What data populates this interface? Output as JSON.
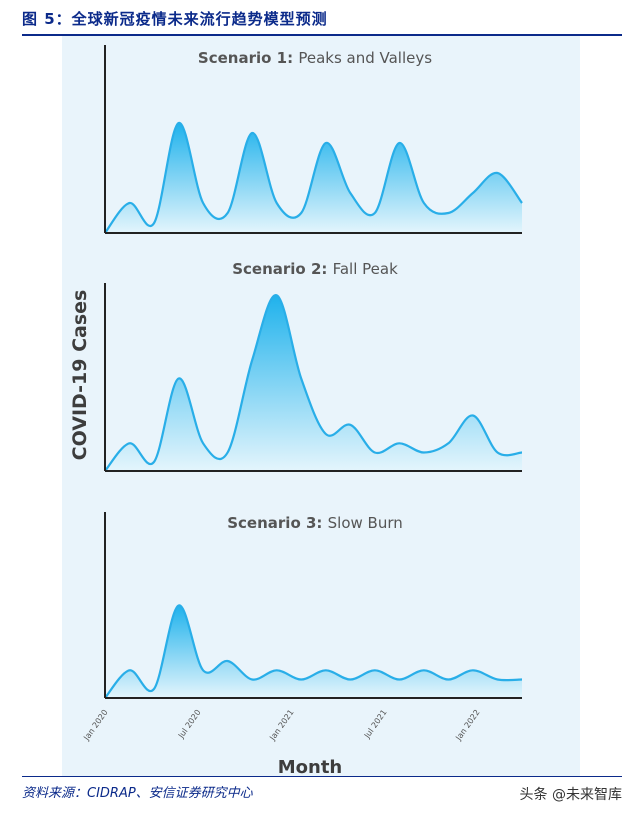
{
  "figure": {
    "title": "图 5：全球新冠疫情未来流行趋势模型预测",
    "source": "资料来源：CIDRAP、安信证券研究中心",
    "watermark": "头条 @未来智库"
  },
  "colors": {
    "fill_top": "#1fb2ec",
    "fill_bottom": "#e4f5fc",
    "stroke": "#29aee8",
    "axis": "#222222",
    "panel_bg": "#e9f4fb",
    "title_blue": "#0b2a8a"
  },
  "chart_data": {
    "type": "area",
    "ylabel": "COVID-19 Cases",
    "xlabel": "Month",
    "x_ticks": [
      "Jan 2020",
      "Jul 2020",
      "Jan 2021",
      "Jul 2021",
      "Jan 2022"
    ],
    "y_scale": "relative (no numeric values shown)",
    "ylim": [
      0,
      1
    ],
    "panels": [
      {
        "title_bold": "Scenario 1:",
        "title_rest": "Peaks and Valleys",
        "points": [
          [
            -1,
            0
          ],
          [
            0,
            0.15
          ],
          [
            1,
            0.05
          ],
          [
            2,
            0.55
          ],
          [
            3,
            0.15
          ],
          [
            4,
            0.1
          ],
          [
            5,
            0.5
          ],
          [
            6,
            0.15
          ],
          [
            7,
            0.1
          ],
          [
            8,
            0.45
          ],
          [
            9,
            0.2
          ],
          [
            10,
            0.1
          ],
          [
            11,
            0.45
          ],
          [
            12,
            0.15
          ],
          [
            13,
            0.1
          ],
          [
            14,
            0.2
          ],
          [
            15,
            0.3
          ],
          [
            16,
            0.15
          ]
        ]
      },
      {
        "title_bold": "Scenario 2:",
        "title_rest": "Fall Peak",
        "points": [
          [
            -1,
            0
          ],
          [
            0,
            0.15
          ],
          [
            1,
            0.05
          ],
          [
            2,
            0.5
          ],
          [
            3,
            0.15
          ],
          [
            4,
            0.1
          ],
          [
            5,
            0.6
          ],
          [
            6,
            0.95
          ],
          [
            7,
            0.5
          ],
          [
            8,
            0.2
          ],
          [
            9,
            0.25
          ],
          [
            10,
            0.1
          ],
          [
            11,
            0.15
          ],
          [
            12,
            0.1
          ],
          [
            13,
            0.15
          ],
          [
            14,
            0.3
          ],
          [
            15,
            0.1
          ],
          [
            16,
            0.1
          ]
        ]
      },
      {
        "title_bold": "Scenario 3:",
        "title_rest": "Slow Burn",
        "points": [
          [
            -1,
            0
          ],
          [
            0,
            0.15
          ],
          [
            1,
            0.05
          ],
          [
            2,
            0.5
          ],
          [
            3,
            0.15
          ],
          [
            4,
            0.2
          ],
          [
            5,
            0.1
          ],
          [
            6,
            0.15
          ],
          [
            7,
            0.1
          ],
          [
            8,
            0.15
          ],
          [
            9,
            0.1
          ],
          [
            10,
            0.15
          ],
          [
            11,
            0.1
          ],
          [
            12,
            0.15
          ],
          [
            13,
            0.1
          ],
          [
            14,
            0.15
          ],
          [
            15,
            0.1
          ],
          [
            16,
            0.1
          ]
        ]
      }
    ]
  }
}
